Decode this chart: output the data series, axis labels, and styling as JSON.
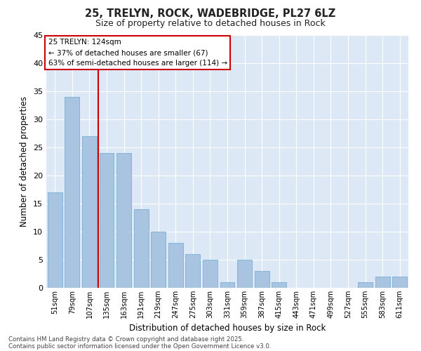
{
  "title1": "25, TRELYN, ROCK, WADEBRIDGE, PL27 6LZ",
  "title2": "Size of property relative to detached houses in Rock",
  "xlabel": "Distribution of detached houses by size in Rock",
  "ylabel": "Number of detached properties",
  "categories": [
    "51sqm",
    "79sqm",
    "107sqm",
    "135sqm",
    "163sqm",
    "191sqm",
    "219sqm",
    "247sqm",
    "275sqm",
    "303sqm",
    "331sqm",
    "359sqm",
    "387sqm",
    "415sqm",
    "443sqm",
    "471sqm",
    "499sqm",
    "527sqm",
    "555sqm",
    "583sqm",
    "611sqm"
  ],
  "values": [
    17,
    34,
    27,
    24,
    24,
    14,
    10,
    8,
    6,
    5,
    1,
    5,
    3,
    1,
    0,
    0,
    0,
    0,
    1,
    2,
    2
  ],
  "bar_color": "#a8c4e0",
  "bar_edge_color": "#7aafd4",
  "bg_color": "#dce8f5",
  "grid_color": "#ffffff",
  "vline_color": "#cc0000",
  "annotation_line1": "25 TRELYN: 124sqm",
  "annotation_line2": "← 37% of detached houses are smaller (67)",
  "annotation_line3": "63% of semi-detached houses are larger (114) →",
  "annotation_box_color": "#cc0000",
  "fig_bg_color": "#ffffff",
  "ylim": [
    0,
    45
  ],
  "yticks": [
    0,
    5,
    10,
    15,
    20,
    25,
    30,
    35,
    40,
    45
  ],
  "footer1": "Contains HM Land Registry data © Crown copyright and database right 2025.",
  "footer2": "Contains public sector information licensed under the Open Government Licence v3.0."
}
